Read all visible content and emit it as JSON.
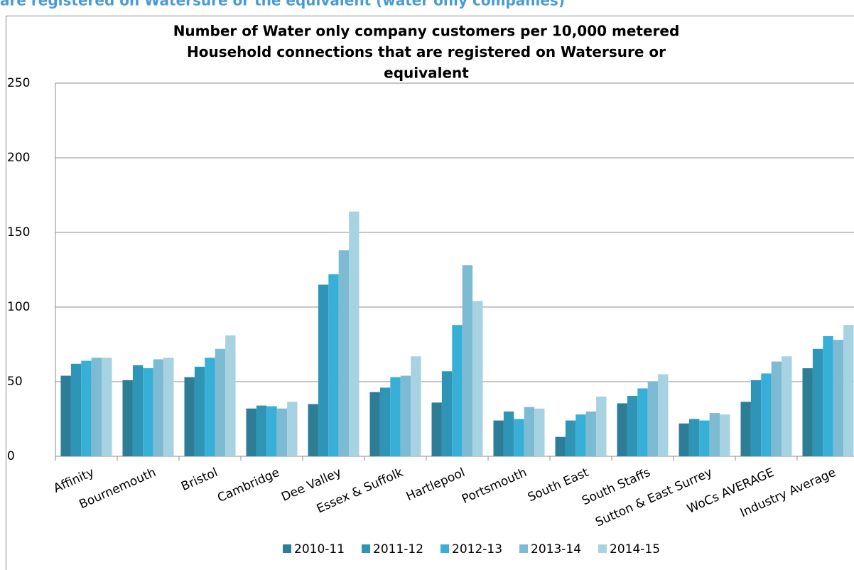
{
  "heading": "are registered on Watersure or the equivalent (water only companies)",
  "chart_data": {
    "type": "bar",
    "title_lines": [
      "Number of Water only company customers per 10,000 metered",
      "Household connections that are registered on Watersure or",
      "equivalent"
    ],
    "categories": [
      "Affinity",
      "Bournemouth",
      "Bristol",
      "Cambridge",
      "Dee Valley",
      "Essex & Suffolk",
      "Hartlepool",
      "Portsmouth",
      "South East",
      "South Staffs",
      "Sutton & East Surrey",
      "WoCs AVERAGE",
      "Industry Average"
    ],
    "series": [
      {
        "name": "2010-11",
        "color": "#2c7d95",
        "values": [
          54,
          51,
          53,
          32,
          35,
          43,
          36,
          24,
          13,
          35.5,
          22,
          36.5,
          59
        ]
      },
      {
        "name": "2011-12",
        "color": "#2e95b6",
        "values": [
          62,
          61,
          60,
          34,
          115,
          46,
          57,
          30,
          24,
          40.5,
          25,
          51,
          72
        ]
      },
      {
        "name": "2012-13",
        "color": "#37afd6",
        "values": [
          64,
          59,
          66,
          33.5,
          122,
          53,
          88,
          25,
          28,
          45.5,
          24,
          55.5,
          80.5
        ]
      },
      {
        "name": "2013-14",
        "color": "#7dbbd2",
        "values": [
          66,
          65,
          72,
          32,
          138,
          54,
          128,
          33,
          30,
          50,
          29,
          63.5,
          78
        ]
      },
      {
        "name": "2014-15",
        "color": "#a7d2e2",
        "values": [
          66,
          66,
          81,
          36.5,
          164,
          67,
          104,
          32,
          40,
          55,
          28,
          67,
          88
        ]
      }
    ],
    "ylim": [
      0,
      250
    ],
    "yticks": [
      0,
      50,
      100,
      150,
      200,
      250
    ],
    "grid": true,
    "legend": "bottom"
  }
}
